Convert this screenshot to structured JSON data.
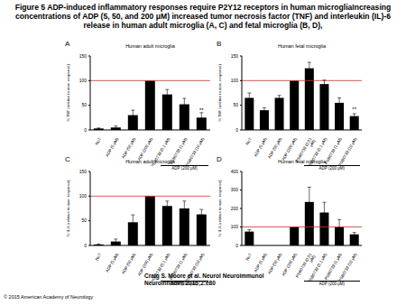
{
  "title": "Figure 5 ADP-induced inflammatory responses require P2Y12 receptors in human microgliaIncreasing concentrations of ADP (5, 50, and 200 μM) increased tumor necrosis factor (TNF) and interleukin (IL)-6 release in human adult microglia (A, C) and fetal microglia (B, D),",
  "caption": "Craig S. Moore et al. Neurol Neuroimmunol Neuroinflamm 2015;2:e80",
  "copyright": "© 2015 American Academy of Neurology",
  "chart_data": [
    {
      "type": "bar",
      "label": "A",
      "title": "Human adult microglia",
      "y_label": "% TNF (relative to max. response)",
      "categories": [
        "NoT",
        "ADP (5 μM)",
        "ADP (50 μM)",
        "ADP (200 μM)",
        "PSB0739 (0.1 μM)",
        "PSB0739 (1 μM)",
        "PSB0739 (10 μM)"
      ],
      "values": [
        3,
        5,
        30,
        100,
        72,
        52,
        25
      ],
      "errors": [
        1,
        3,
        10,
        0,
        10,
        12,
        10
      ],
      "color": "#000000",
      "ylim": [
        0,
        150
      ],
      "yticks": [
        0,
        50,
        100,
        150
      ],
      "reference_line": 100,
      "reference_color": "#c0392b",
      "annotations": [
        {
          "category": "PSB0739 (10 μM)",
          "text": "**"
        }
      ],
      "group": {
        "label": "ADP (200 μM)",
        "categories": [
          "PSB0739 (0.1 μM)",
          "PSB0739 (1 μM)",
          "PSB0739 (10 μM)"
        ]
      }
    },
    {
      "type": "bar",
      "label": "B",
      "title": "Human fetal microglia",
      "y_label": "% TNF (relative to max. response)",
      "categories": [
        "NoT",
        "ADP (5 μM)",
        "ADP (50 μM)",
        "ADP (200 μM)",
        "PSB0739 (0.01 μM)",
        "PSB0739 (0.1 μM)",
        "PSB0739 (1 μM)",
        "PSB0739 (10 μM)"
      ],
      "values": [
        65,
        40,
        65,
        100,
        125,
        93,
        55,
        28
      ],
      "errors": [
        10,
        5,
        5,
        0,
        12,
        8,
        10,
        5
      ],
      "color": "#000000",
      "ylim": [
        0,
        150
      ],
      "yticks": [
        0,
        50,
        100,
        150
      ],
      "reference_line": 100,
      "reference_color": "#c0392b",
      "annotations": [
        {
          "category": "PSB0739 (10 μM)",
          "text": "**"
        }
      ],
      "group": {
        "label": "ADP (200 μM)",
        "categories": [
          "PSB0739 (0.01 μM)",
          "PSB0739 (0.1 μM)",
          "PSB0739 (1 μM)",
          "PSB0739 (10 μM)"
        ]
      }
    },
    {
      "type": "bar",
      "label": "C",
      "title": "Human adult microglia",
      "y_label": "% IL-6 (relative to max. response)",
      "categories": [
        "NoT",
        "ADP (5 μM)",
        "ADP (50 μM)",
        "ADP (200 μM)",
        "PSB0739 (0.1 μM)",
        "PSB0739 (1 μM)",
        "PSB0739 (10 μM)"
      ],
      "values": [
        2,
        8,
        47,
        100,
        80,
        75,
        63
      ],
      "errors": [
        1,
        5,
        15,
        0,
        10,
        15,
        10
      ],
      "color": "#000000",
      "ylim": [
        0,
        150
      ],
      "yticks": [
        0,
        50,
        100,
        150
      ],
      "reference_line": 100,
      "reference_color": "#c0392b",
      "annotations": [],
      "group": {
        "label": "ADP (200 μM)",
        "categories": [
          "PSB0739 (0.1 μM)",
          "PSB0739 (1 μM)",
          "PSB0739 (10 μM)"
        ]
      }
    },
    {
      "type": "bar",
      "label": "D",
      "title": "Human fetal microglia",
      "y_label": "% IL-6 (relative to max. response)",
      "categories": [
        "NoT",
        "ADP (5 μM)",
        "ADP (50 μM)",
        "ADP (200 μM)",
        "PSB0739 (0.01 μM)",
        "PSB0739 (0.1 μM)",
        "PSB0739 (1 μM)",
        "PSB0739 (10 μM)"
      ],
      "values": [
        75,
        null,
        null,
        100,
        235,
        178,
        100,
        60
      ],
      "errors": [
        10,
        null,
        null,
        0,
        80,
        55,
        40,
        10
      ],
      "color": "#000000",
      "ylim": [
        0,
        400
      ],
      "yticks": [
        0,
        100,
        200,
        300,
        400
      ],
      "reference_line": 100,
      "reference_color": "#c0392b",
      "annotations": [],
      "group": {
        "label": "ADP (200 μM)",
        "categories": [
          "PSB0739 (0.01 μM)",
          "PSB0739 (0.1 μM)",
          "PSB0739 (1 μM)",
          "PSB0739 (10 μM)"
        ]
      }
    }
  ]
}
